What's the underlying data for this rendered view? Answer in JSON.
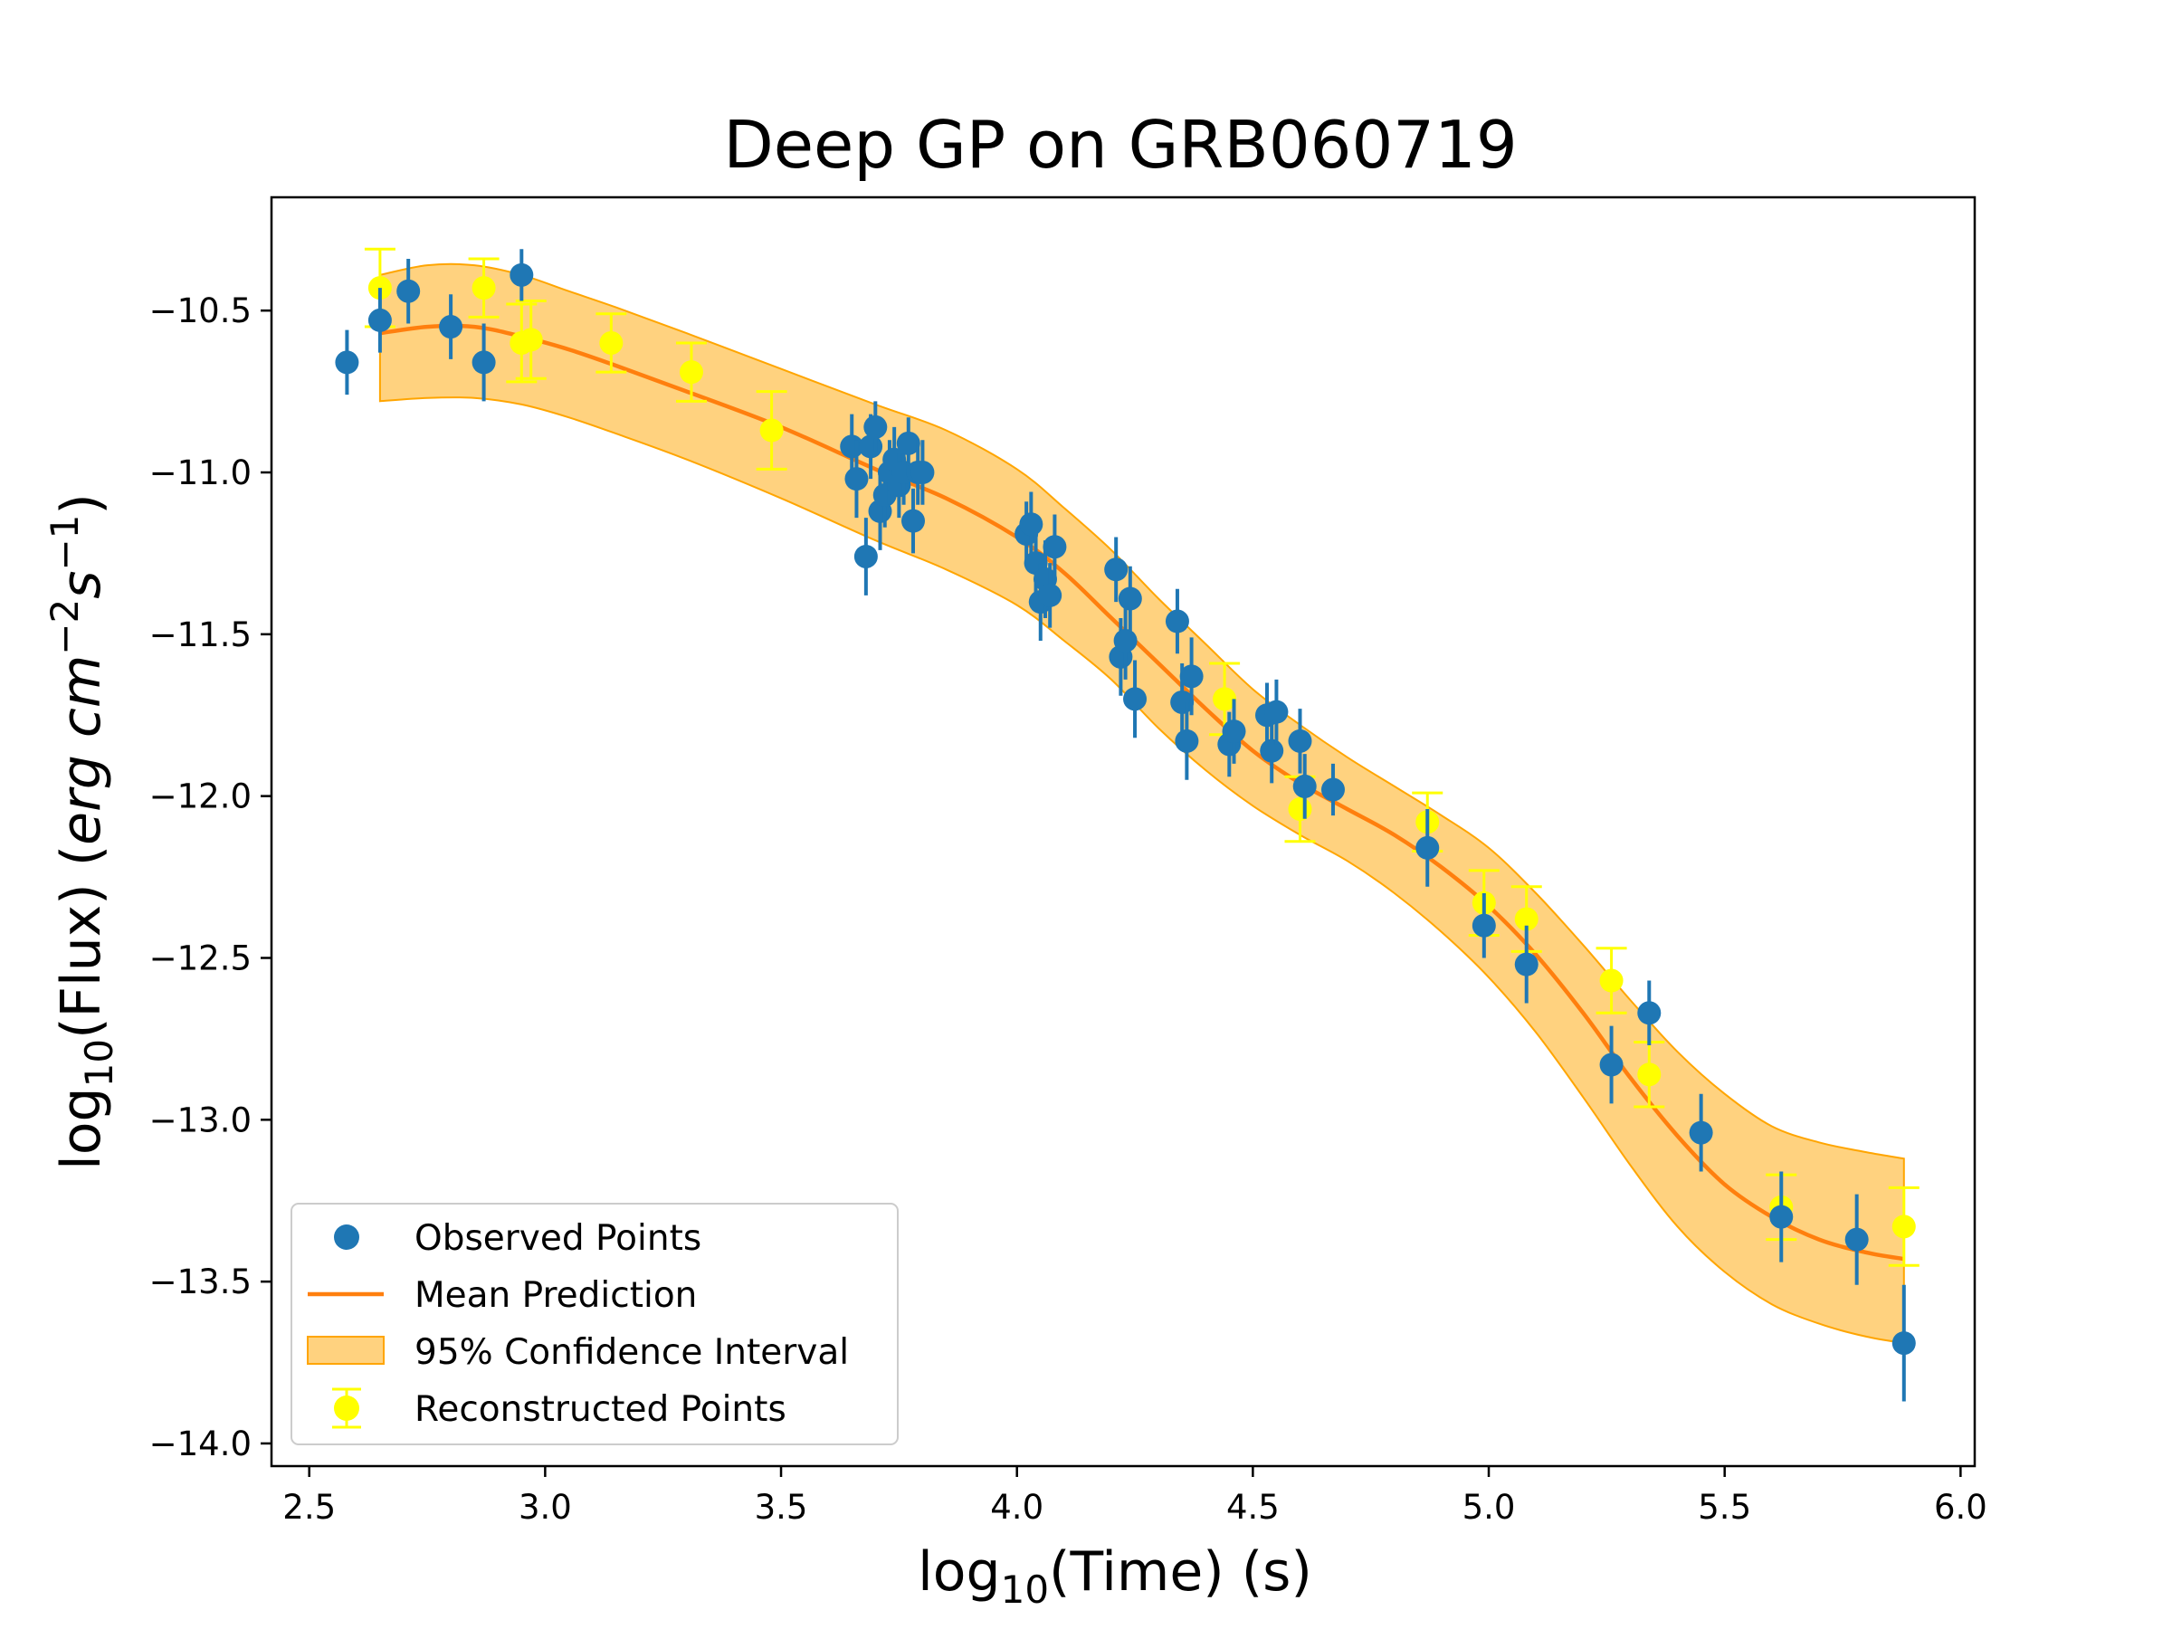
{
  "chart_data": {
    "type": "scatter",
    "title": "Deep GP on GRB060719",
    "xlabel_prefix": "log",
    "xlabel_sub": "10",
    "xlabel_rest": "(Time) (s)",
    "ylabel_prefix": "log",
    "ylabel_sub": "10",
    "ylabel_mid": "(Flux) (",
    "ylabel_unit": "erg cm",
    "ylabel_sup1": "−2",
    "ylabel_s": "s",
    "ylabel_sup2": "−1",
    "ylabel_end": ")",
    "xlim": [
      2.42,
      6.03
    ],
    "ylim": [
      -14.07,
      -10.15
    ],
    "xticks": [
      2.5,
      3.0,
      3.5,
      4.0,
      4.5,
      5.0,
      5.5,
      6.0
    ],
    "xtick_labels": [
      "2.5",
      "3.0",
      "3.5",
      "4.0",
      "4.5",
      "5.0",
      "5.5",
      "6.0"
    ],
    "yticks": [
      -10.5,
      -11.0,
      -11.5,
      -12.0,
      -12.5,
      -13.0,
      -13.5,
      -14.0
    ],
    "ytick_labels": [
      "−10.5",
      "−11.0",
      "−11.5",
      "−12.0",
      "−12.5",
      "−13.0",
      "−13.5",
      "−14.0"
    ],
    "colors": {
      "observed": "#1f77b4",
      "mean": "#ff7f0e",
      "band_fill": "#ffa500",
      "reconstructed": "#ffff00"
    },
    "legend": {
      "position": "lower-left",
      "entries": [
        "Observed Points",
        "Mean Prediction",
        "95% Confidence Interval",
        "Reconstructed Points"
      ]
    },
    "series": [
      {
        "name": "Mean Prediction",
        "x": [
          2.65,
          2.75,
          2.85,
          2.95,
          3.05,
          3.15,
          3.3,
          3.5,
          3.7,
          3.85,
          4.0,
          4.1,
          4.2,
          4.3,
          4.4,
          4.5,
          4.6,
          4.7,
          4.8,
          4.9,
          5.0,
          5.1,
          5.2,
          5.3,
          5.4,
          5.5,
          5.6,
          5.7,
          5.8,
          5.88
        ],
        "y": [
          -10.57,
          -10.55,
          -10.55,
          -10.58,
          -10.62,
          -10.67,
          -10.75,
          -10.86,
          -10.99,
          -11.08,
          -11.2,
          -11.31,
          -11.45,
          -11.59,
          -11.73,
          -11.86,
          -11.96,
          -12.04,
          -12.12,
          -12.22,
          -12.34,
          -12.49,
          -12.67,
          -12.87,
          -13.05,
          -13.2,
          -13.3,
          -13.37,
          -13.41,
          -13.43
        ]
      },
      {
        "name": "95% Confidence Interval",
        "x": [
          2.65,
          2.75,
          2.85,
          2.95,
          3.05,
          3.15,
          3.3,
          3.5,
          3.7,
          3.85,
          4.0,
          4.1,
          4.2,
          4.3,
          4.4,
          4.5,
          4.6,
          4.7,
          4.8,
          4.9,
          5.0,
          5.1,
          5.2,
          5.3,
          5.4,
          5.5,
          5.6,
          5.7,
          5.8,
          5.88
        ],
        "lower": [
          -10.78,
          -10.77,
          -10.77,
          -10.79,
          -10.83,
          -10.88,
          -10.96,
          -11.08,
          -11.21,
          -11.3,
          -11.41,
          -11.52,
          -11.64,
          -11.79,
          -11.92,
          -12.03,
          -12.12,
          -12.2,
          -12.3,
          -12.42,
          -12.56,
          -12.73,
          -12.93,
          -13.14,
          -13.33,
          -13.47,
          -13.57,
          -13.63,
          -13.67,
          -13.69
        ],
        "upper": [
          -10.39,
          -10.36,
          -10.36,
          -10.39,
          -10.44,
          -10.49,
          -10.57,
          -10.68,
          -10.79,
          -10.87,
          -10.99,
          -11.11,
          -11.24,
          -11.39,
          -11.53,
          -11.67,
          -11.78,
          -11.88,
          -11.97,
          -12.06,
          -12.16,
          -12.3,
          -12.46,
          -12.63,
          -12.79,
          -12.92,
          -13.02,
          -13.07,
          -13.1,
          -13.12
        ]
      },
      {
        "name": "Observed Points",
        "x": [
          2.58,
          2.65,
          2.71,
          2.8,
          2.87,
          2.95,
          3.65,
          3.66,
          3.68,
          3.69,
          3.7,
          3.71,
          3.72,
          3.73,
          3.74,
          3.75,
          3.76,
          3.77,
          3.78,
          3.79,
          3.8,
          4.02,
          4.03,
          4.04,
          4.05,
          4.06,
          4.07,
          4.08,
          4.21,
          4.22,
          4.23,
          4.24,
          4.25,
          4.34,
          4.35,
          4.36,
          4.37,
          4.45,
          4.46,
          4.53,
          4.54,
          4.55,
          4.6,
          4.61,
          4.67,
          4.87,
          4.99,
          5.08,
          5.26,
          5.34,
          5.45,
          5.62,
          5.78,
          5.88
        ],
        "y": [
          -10.66,
          -10.53,
          -10.44,
          -10.55,
          -10.66,
          -10.39,
          -10.92,
          -11.02,
          -11.26,
          -10.92,
          -10.86,
          -11.12,
          -11.07,
          -11.0,
          -10.96,
          -11.04,
          -11.0,
          -10.91,
          -11.15,
          -11.0,
          -11.0,
          -11.19,
          -11.16,
          -11.28,
          -11.4,
          -11.33,
          -11.38,
          -11.23,
          -11.3,
          -11.57,
          -11.52,
          -11.39,
          -11.7,
          -11.46,
          -11.71,
          -11.83,
          -11.63,
          -11.84,
          -11.8,
          -11.75,
          -11.86,
          -11.74,
          -11.83,
          -11.97,
          -11.98,
          -12.16,
          -12.4,
          -12.52,
          -12.83,
          -12.67,
          -13.04,
          -13.3,
          -13.37,
          -13.69
        ],
        "yerr": [
          0.1,
          0.1,
          0.1,
          0.1,
          0.12,
          0.08,
          0.1,
          0.12,
          0.12,
          0.1,
          0.08,
          0.12,
          0.1,
          0.1,
          0.1,
          0.1,
          0.1,
          0.08,
          0.1,
          0.1,
          0.1,
          0.1,
          0.1,
          0.1,
          0.12,
          0.12,
          0.1,
          0.1,
          0.1,
          0.12,
          0.12,
          0.1,
          0.12,
          0.1,
          0.12,
          0.12,
          0.12,
          0.1,
          0.1,
          0.1,
          0.1,
          0.1,
          0.1,
          0.1,
          0.08,
          0.12,
          0.1,
          0.12,
          0.12,
          0.1,
          0.12,
          0.14,
          0.14,
          0.18
        ]
      },
      {
        "name": "Reconstructed Points",
        "x": [
          2.65,
          2.87,
          2.95,
          2.97,
          3.14,
          3.31,
          3.48,
          4.44,
          4.6,
          4.87,
          4.99,
          5.08,
          5.26,
          5.34,
          5.62,
          5.88
        ],
        "y": [
          -10.43,
          -10.43,
          -10.6,
          -10.59,
          -10.6,
          -10.69,
          -10.87,
          -11.7,
          -12.04,
          -12.08,
          -12.33,
          -12.38,
          -12.57,
          -12.86,
          -13.27,
          -13.33
        ],
        "yerr": [
          0.12,
          0.09,
          0.12,
          0.12,
          0.09,
          0.09,
          0.12,
          0.11,
          0.1,
          0.09,
          0.1,
          0.1,
          0.1,
          0.1,
          0.1,
          0.12
        ]
      }
    ]
  }
}
